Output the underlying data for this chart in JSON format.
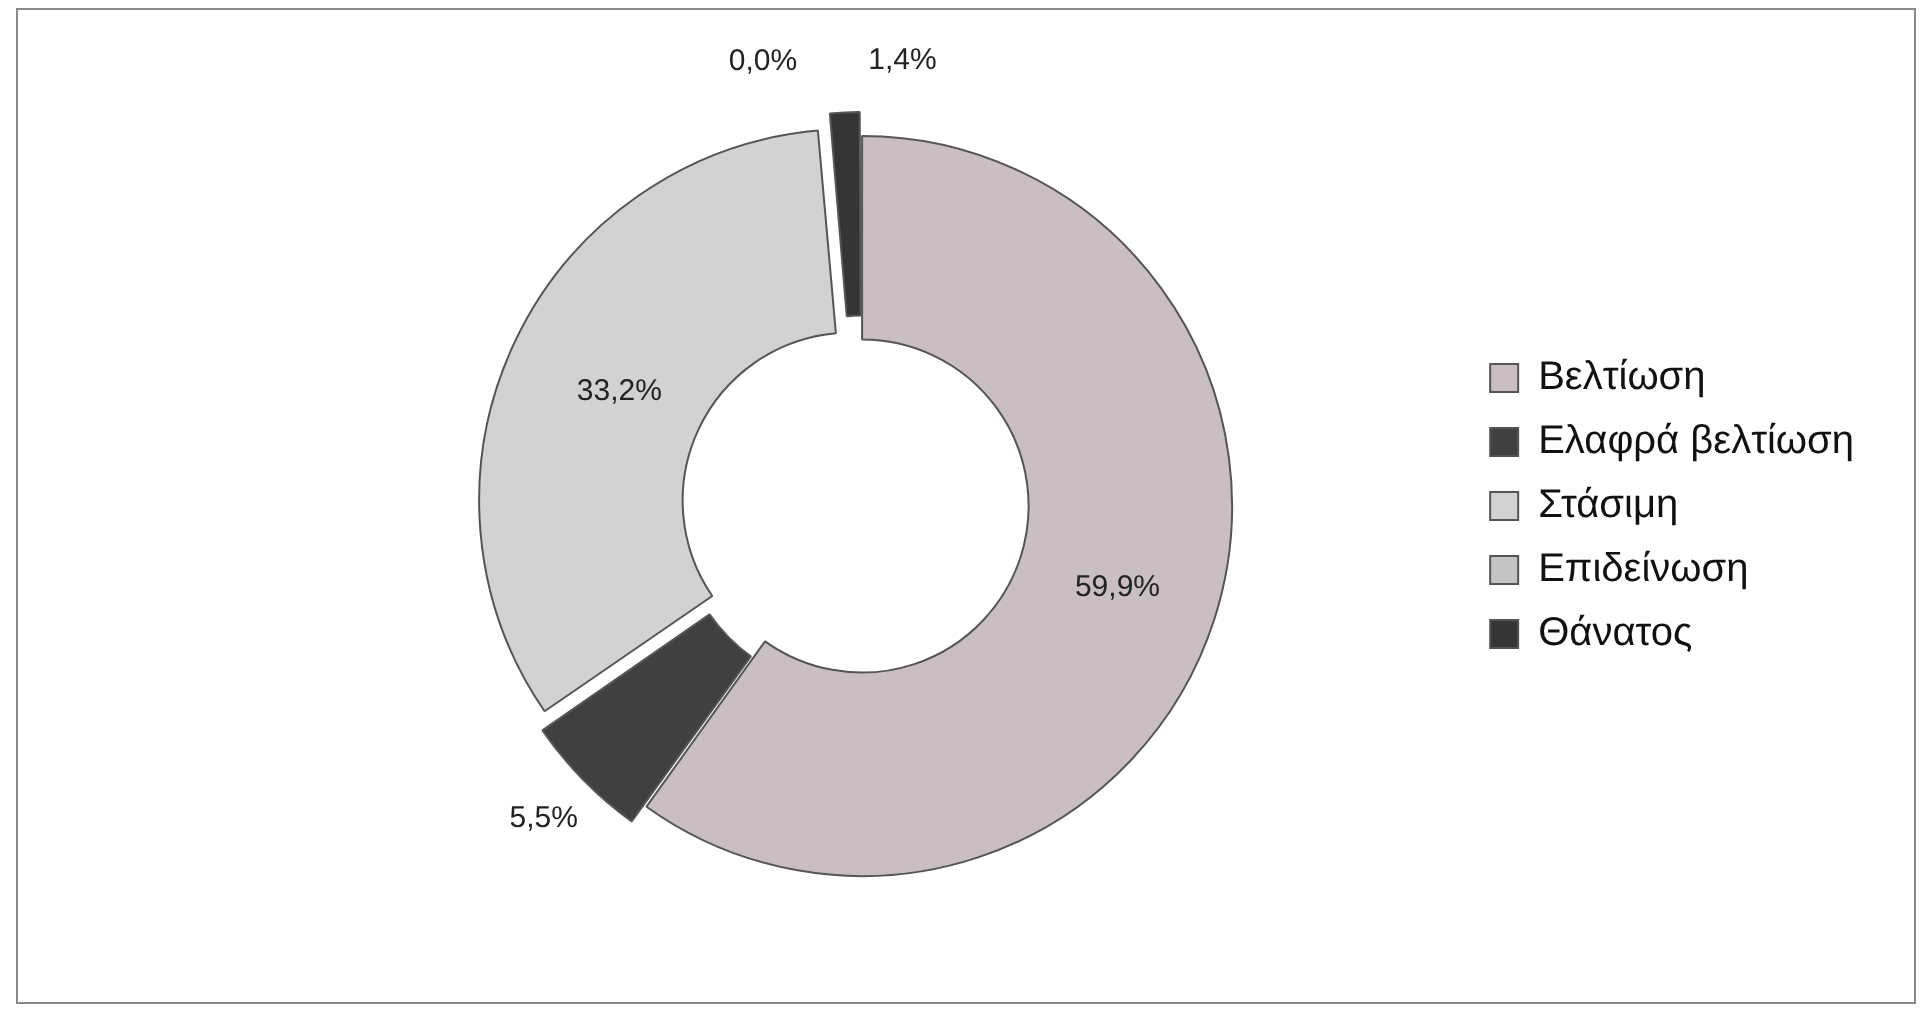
{
  "chart_data": {
    "type": "donut",
    "categories": [
      "Βελτίωση",
      "Ελαφρά βελτίωση",
      "Στάσιμη",
      "Επιδείνωση",
      "Θάνατος"
    ],
    "values": [
      59.9,
      5.5,
      33.2,
      0.0,
      1.4
    ],
    "value_labels": [
      "59,9%",
      "5,5%",
      "33,2%",
      "0,0%",
      "1,4%"
    ],
    "colors": [
      "#c9bfc3",
      "#404040",
      "#d2d2d2",
      "#c4c4c4",
      "#353535"
    ],
    "legend": "right"
  }
}
